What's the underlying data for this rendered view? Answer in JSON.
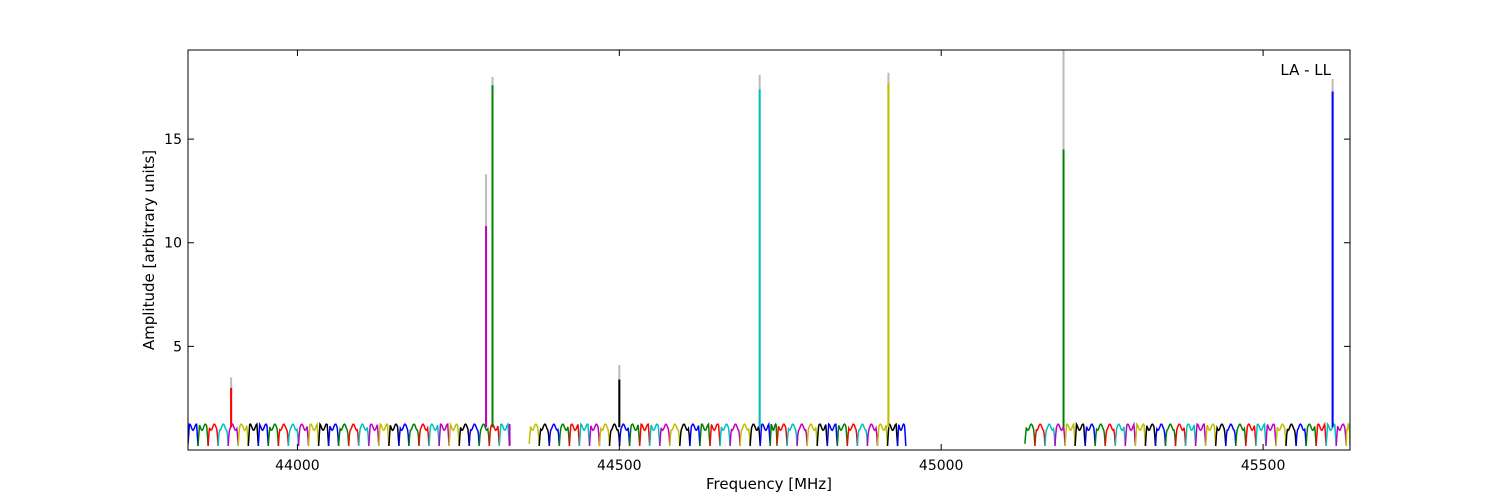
{
  "chart_data": {
    "type": "line",
    "title": "",
    "xlabel": "Frequency [MHz]",
    "ylabel": "Amplitude [arbitrary units]",
    "xlim": [
      43830,
      45635
    ],
    "ylim": [
      0,
      19.3
    ],
    "xticks": [
      44000,
      44500,
      45000,
      45500
    ],
    "yticks": [
      5,
      10,
      15
    ],
    "grid": false,
    "annotation": "LA - LL",
    "annotation_position": "top-right",
    "band_colors": [
      "#0000ff",
      "#008000",
      "#ff0000",
      "#00bfbf",
      "#bf00bf",
      "#bfbf00",
      "#000000"
    ],
    "envelope_color": "#bbbbbb",
    "baseline": 1.1,
    "spectral_windows": [
      {
        "start": 43830,
        "end": 44330
      },
      {
        "start": 44360,
        "end": 44745
      },
      {
        "start": 44745,
        "end": 44945
      },
      {
        "start": 45130,
        "end": 45635
      }
    ],
    "peaks": [
      {
        "x": 43897,
        "y": 3.0,
        "envelope": 3.5,
        "color": "#ff0000"
      },
      {
        "x": 44293,
        "y": 10.8,
        "envelope": 13.3,
        "color": "#bf00bf"
      },
      {
        "x": 44303,
        "y": 17.6,
        "envelope": 18.0,
        "color": "#008000"
      },
      {
        "x": 44500,
        "y": 3.4,
        "envelope": 4.1,
        "color": "#000000"
      },
      {
        "x": 44718,
        "y": 17.4,
        "envelope": 18.1,
        "color": "#00bfbf"
      },
      {
        "x": 44918,
        "y": 17.7,
        "envelope": 18.2,
        "color": "#bfbf00"
      },
      {
        "x": 45190,
        "y": 14.5,
        "envelope": 19.3,
        "color": "#008000"
      },
      {
        "x": 45608,
        "y": 17.3,
        "envelope": 17.9,
        "color": "#0000ff"
      }
    ]
  }
}
